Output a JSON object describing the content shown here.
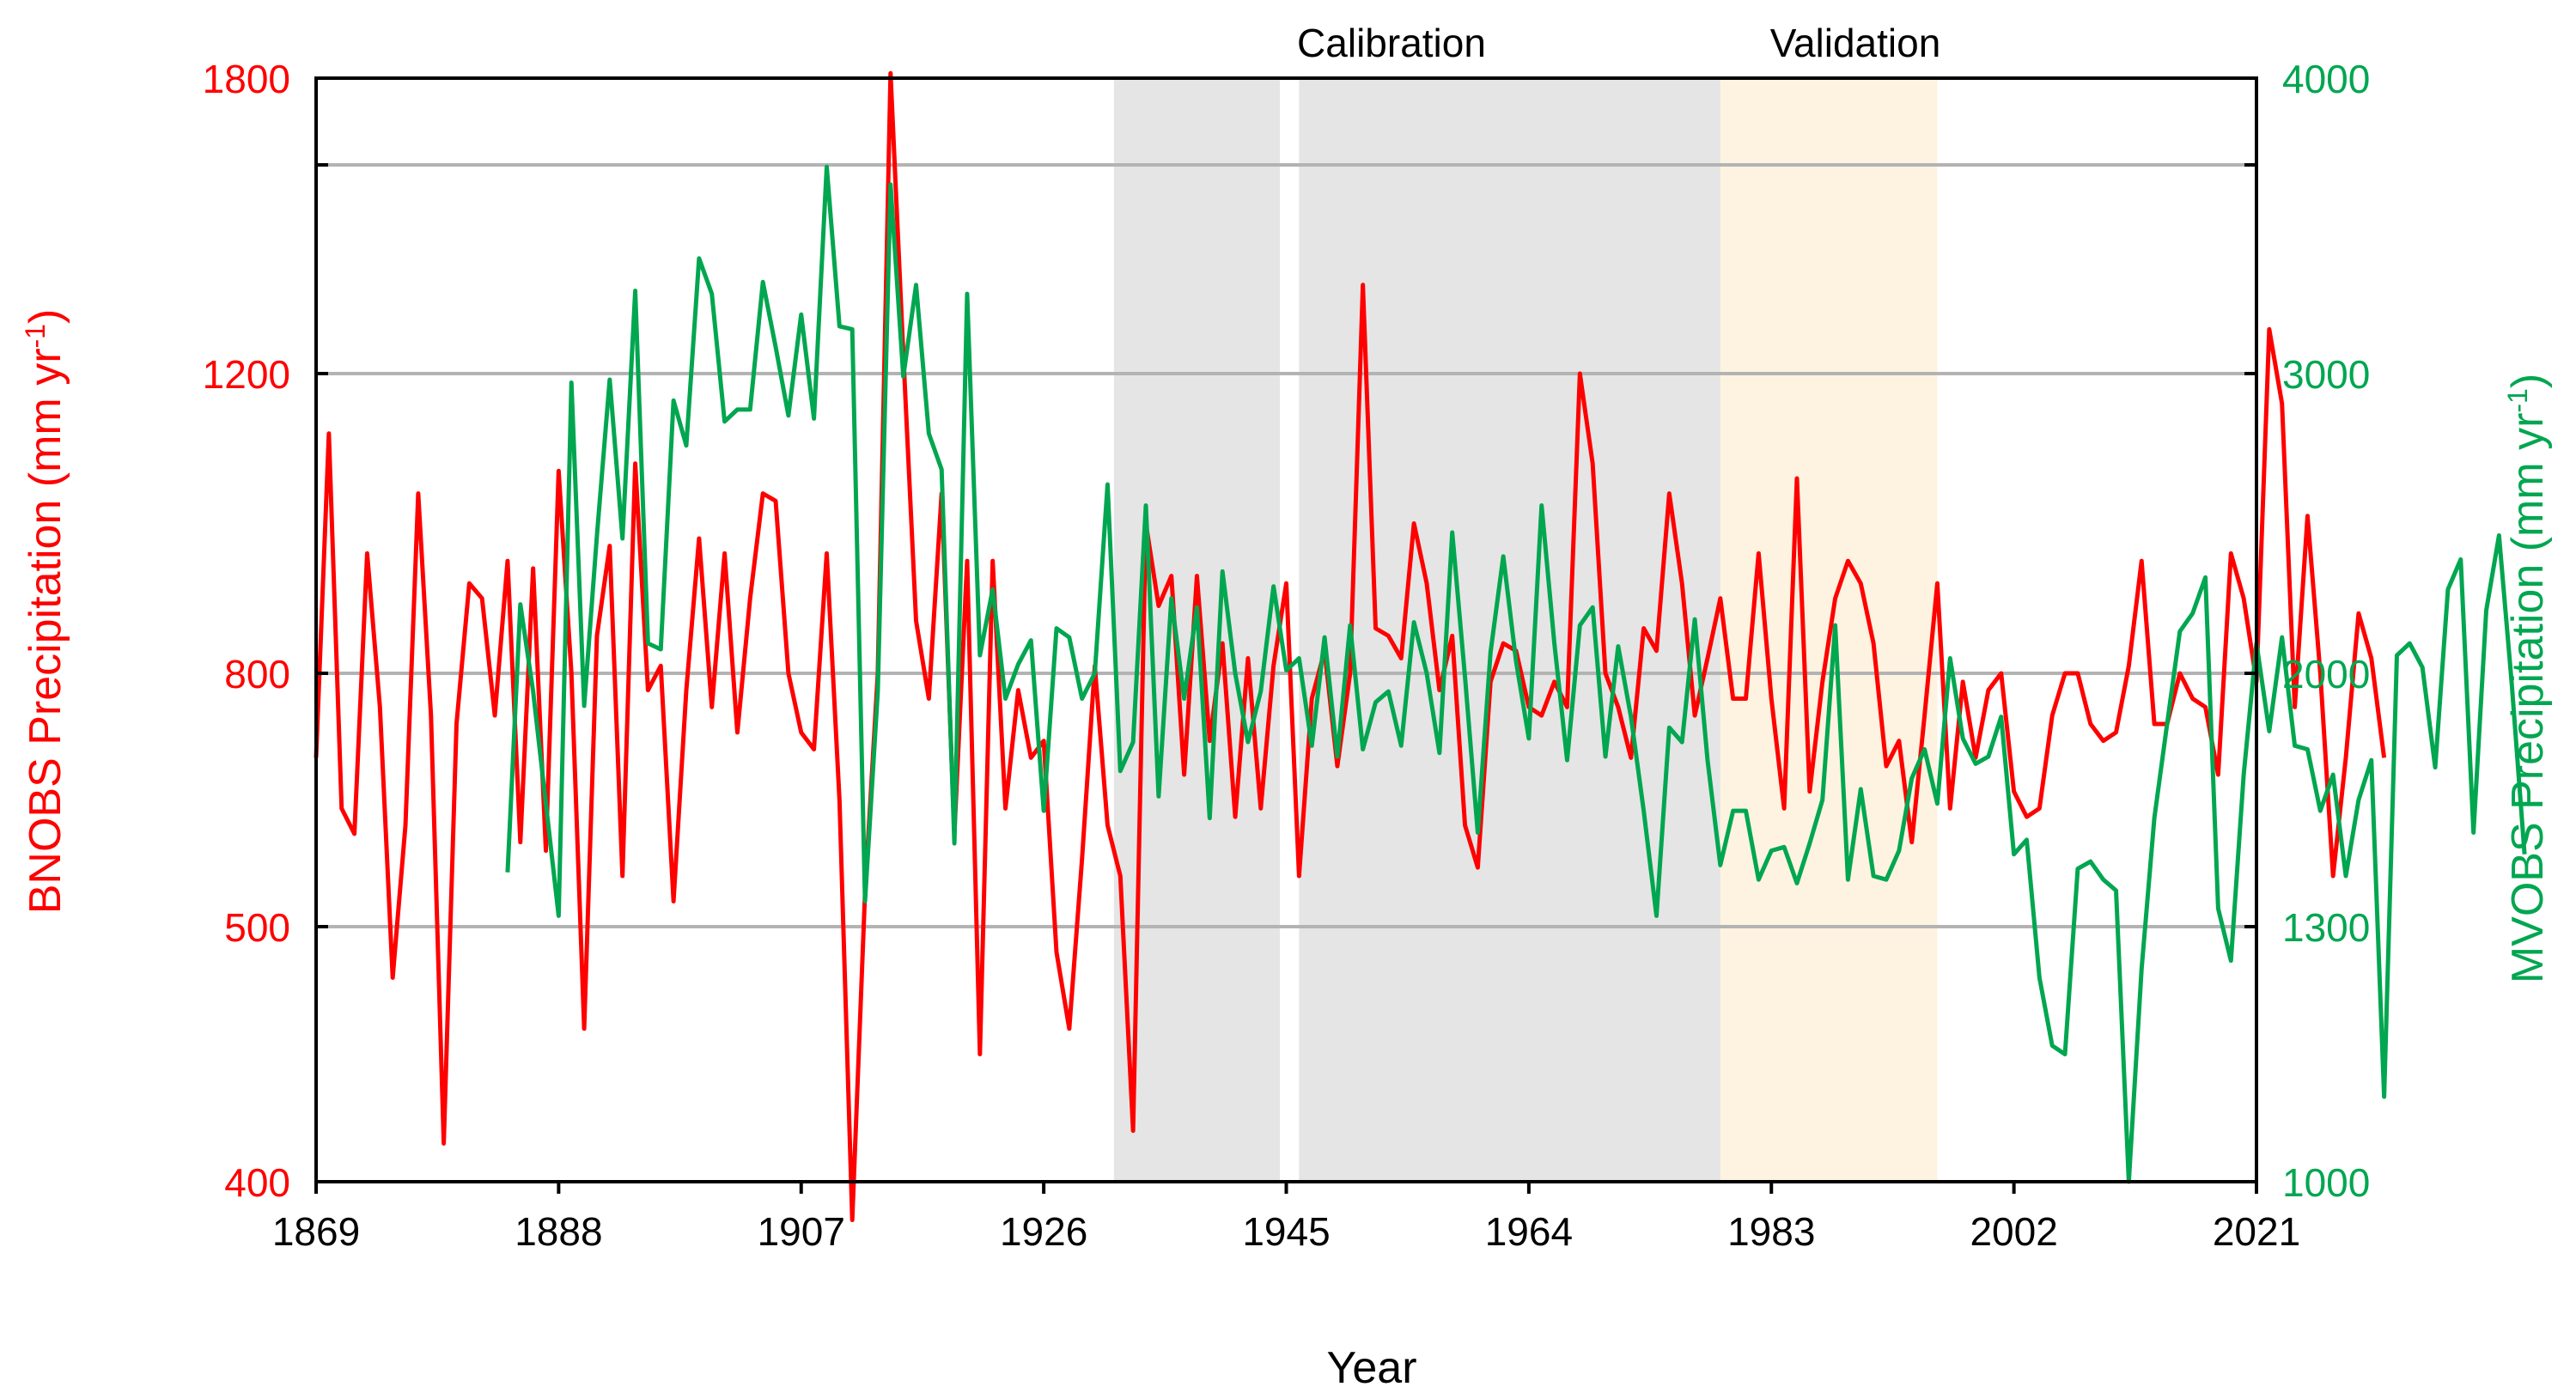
{
  "chart_data": {
    "type": "line",
    "xlabel": "Year",
    "xlim": [
      1869,
      2021
    ],
    "xticks": [
      "1869",
      "1888",
      "1907",
      "1926",
      "1945",
      "1964",
      "1983",
      "2002",
      "2021"
    ],
    "y_left": {
      "label": "BNOBS  Precipitation (mm yr",
      "label_sup": "-1",
      "label_end": ")",
      "ticks": [
        "400",
        "500",
        "800",
        "1200",
        "1800"
      ],
      "color": "#ff0000"
    },
    "y_right": {
      "label": "MVOBS  Precipitation (mm yr",
      "label_sup": "-1",
      "label_end": ")",
      "ticks": [
        "1000",
        "1300",
        "2000",
        "3000",
        "4000"
      ],
      "color": "#00a650"
    },
    "regions": [
      {
        "label": "Calibration",
        "ranges": [
          [
            1931.5,
            1944.5
          ],
          [
            1946,
            1979
          ]
        ],
        "color": "#e5e5e5"
      },
      {
        "label": "Validation",
        "ranges": [
          [
            1979,
            1996
          ]
        ],
        "color": "#fdf3e0"
      }
    ],
    "series": [
      {
        "name": "BNOBS",
        "axis": "left",
        "color": "#ff0000",
        "start_year": 1869,
        "values": [
          700,
          1120,
          640,
          610,
          960,
          760,
          480,
          620,
          1040,
          750,
          415,
          740,
          920,
          900,
          750,
          950,
          600,
          940,
          590,
          1070,
          800,
          460,
          850,
          970,
          560,
          1080,
          780,
          810,
          530,
          780,
          980,
          760,
          960,
          730,
          900,
          1040,
          1030,
          800,
          730,
          710,
          960,
          650,
          385,
          540,
          800,
          1810,
          1240,
          870,
          770,
          1040,
          610,
          950,
          450,
          950,
          640,
          780,
          700,
          720,
          490,
          460,
          580,
          810,
          620,
          560,
          420,
          1000,
          890,
          930,
          680,
          930,
          720,
          840,
          630,
          820,
          640,
          810,
          920,
          560,
          770,
          830,
          690,
          800,
          1380,
          860,
          850,
          820,
          1000,
          920,
          780,
          850,
          620,
          570,
          790,
          840,
          830,
          760,
          750,
          790,
          760,
          1200,
          1080,
          800,
          760,
          700,
          860,
          830,
          1040,
          920,
          750,
          820,
          900,
          770,
          770,
          960,
          770,
          640,
          1060,
          660,
          790,
          900,
          950,
          920,
          840,
          690,
          720,
          600,
          750,
          920,
          640,
          790,
          700,
          780,
          800,
          660,
          630,
          640,
          750,
          800,
          800,
          740,
          720,
          730,
          810,
          950,
          740,
          740,
          800,
          770,
          760,
          680,
          960,
          900,
          790,
          1290,
          1160,
          760,
          1010,
          800,
          560,
          700,
          880,
          820,
          700
        ]
      },
      {
        "name": "MVOBS",
        "axis": "right",
        "color": "#00a650",
        "start_year": 1884,
        "values": [
          1450,
          2230,
          1950,
          1640,
          1330,
          2970,
          1910,
          2460,
          2980,
          2450,
          3280,
          2100,
          2080,
          2910,
          2760,
          3390,
          3270,
          2840,
          2880,
          2880,
          3310,
          3090,
          2860,
          3200,
          2850,
          3700,
          3160,
          3150,
          1370,
          1950,
          3640,
          2990,
          3300,
          2800,
          2680,
          1530,
          3270,
          2060,
          2280,
          1930,
          2030,
          2110,
          1620,
          2150,
          2120,
          1930,
          2000,
          2630,
          1730,
          1810,
          2560,
          1660,
          2250,
          1930,
          2220,
          1600,
          2340,
          2000,
          1810,
          1950,
          2290,
          2010,
          2050,
          1800,
          2120,
          1770,
          2160,
          1790,
          1920,
          1950,
          1800,
          2170,
          2000,
          1780,
          2470,
          1990,
          1560,
          2070,
          2390,
          2040,
          1820,
          2560,
          2100,
          1760,
          2160,
          2220,
          1770,
          2090,
          1880,
          1620,
          1330,
          1850,
          1810,
          2180,
          1760,
          1470,
          1620,
          1620,
          1430,
          1510,
          1520,
          1420,
          1530,
          1650,
          2160,
          1430,
          1680,
          1440,
          1430,
          1510,
          1710,
          1790,
          1640,
          2050,
          1820,
          1750,
          1770,
          1880,
          1500,
          1540,
          1240,
          1160,
          1150,
          1460,
          1480,
          1430,
          1400,
          1000,
          1250,
          1600,
          1860,
          2140,
          2200,
          2320,
          1350,
          1260,
          1720,
          2100,
          1840,
          2120,
          1800,
          1790,
          1620,
          1720,
          1440,
          1650,
          1760,
          1100,
          2060,
          2100,
          2020,
          1740,
          2280,
          2380,
          1560,
          2210,
          2460,
          1970,
          1500
        ]
      }
    ]
  }
}
